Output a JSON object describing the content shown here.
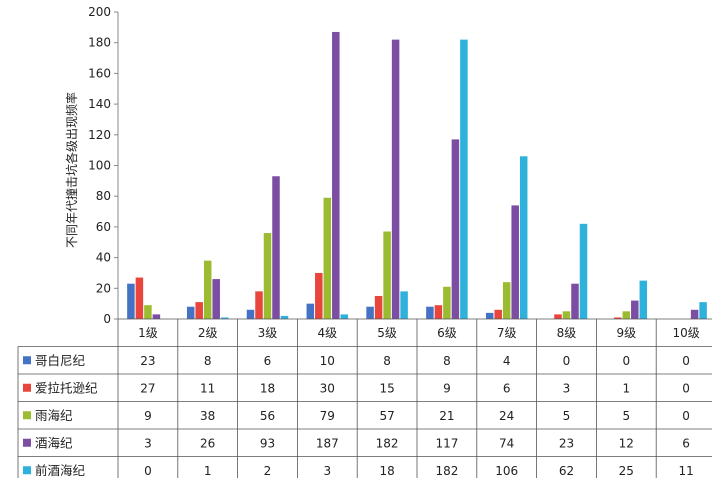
{
  "chart_data": {
    "type": "bar",
    "ylabel": "不同年代撞击坑各级出现频率",
    "ylim": [
      0,
      200
    ],
    "yticks": [
      0,
      20,
      40,
      60,
      80,
      100,
      120,
      140,
      160,
      180,
      200
    ],
    "grid": false,
    "legend": "data-table-left",
    "categories": [
      "1级",
      "2级",
      "3级",
      "4级",
      "5级",
      "6级",
      "7级",
      "8级",
      "9级",
      "10级"
    ],
    "series": [
      {
        "name": "哥白尼纪",
        "color": "#4472C4",
        "values": [
          23,
          8,
          6,
          10,
          8,
          8,
          4,
          0,
          0,
          0
        ]
      },
      {
        "name": "爱拉托逊纪",
        "color": "#E8453C",
        "values": [
          27,
          11,
          18,
          30,
          15,
          9,
          6,
          3,
          1,
          0
        ]
      },
      {
        "name": "雨海纪",
        "color": "#9BBB30",
        "values": [
          9,
          38,
          56,
          79,
          57,
          21,
          24,
          5,
          5,
          0
        ]
      },
      {
        "name": "酒海纪",
        "color": "#7B4EA3",
        "values": [
          3,
          26,
          93,
          187,
          182,
          117,
          74,
          23,
          12,
          6
        ]
      },
      {
        "name": "前酒海纪",
        "color": "#2EB1DB",
        "values": [
          0,
          1,
          2,
          3,
          18,
          182,
          106,
          62,
          25,
          11
        ]
      }
    ]
  }
}
